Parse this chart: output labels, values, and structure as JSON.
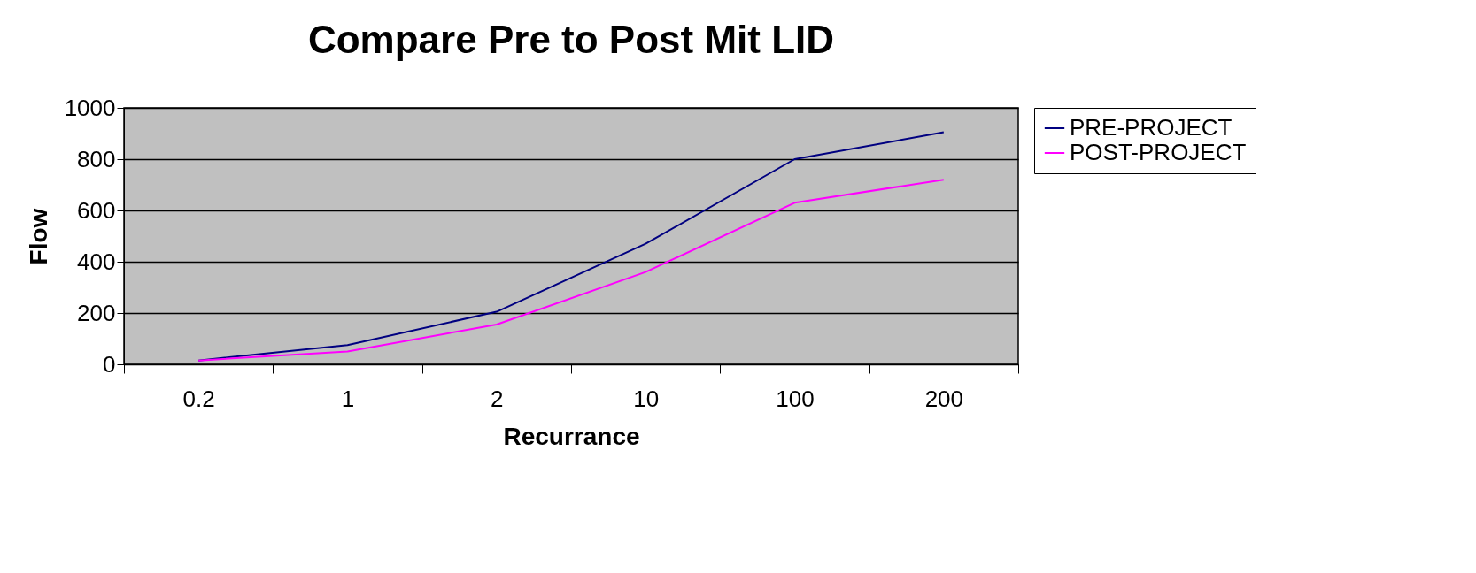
{
  "chart_data": {
    "type": "line",
    "title": "Compare Pre to Post Mit LID",
    "xlabel": "Recurrance",
    "ylabel": "Flow",
    "categories": [
      "0.2",
      "1",
      "2",
      "10",
      "100",
      "200"
    ],
    "series": [
      {
        "name": "PRE-PROJECT",
        "color": "#000080",
        "values": [
          15,
          75,
          205,
          470,
          800,
          905
        ]
      },
      {
        "name": "POST-PROJECT",
        "color": "#ff00ff",
        "values": [
          15,
          50,
          155,
          360,
          630,
          720
        ]
      }
    ],
    "ylim": [
      0,
      1000
    ],
    "yticks": [
      0,
      200,
      400,
      600,
      800,
      1000
    ],
    "grid": "y",
    "legend": "right",
    "marker": "none",
    "line_style": "solid"
  }
}
